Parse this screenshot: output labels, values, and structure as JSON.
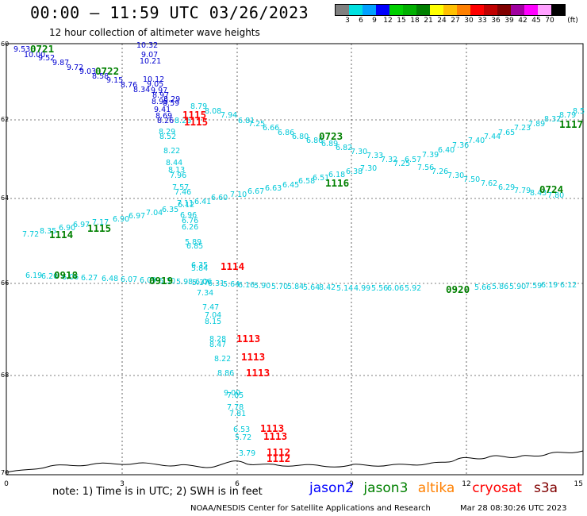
{
  "title": "00:00 — 11:59 UTC 03/26/2023",
  "subtitle": "12 hour collection of altimeter wave heights",
  "legend": {
    "colors": [
      "#808080",
      "#00e0e0",
      "#00a0ff",
      "#0000ff",
      "#00d000",
      "#00b000",
      "#008000",
      "#ffff00",
      "#ffc000",
      "#ff8000",
      "#ff0000",
      "#c00000",
      "#800000",
      "#a000a0",
      "#ff00ff",
      "#ffa0ff",
      "#000000"
    ],
    "ticks": [
      "3",
      "6",
      "9",
      "12",
      "15",
      "18",
      "21",
      "24",
      "27",
      "30",
      "33",
      "36",
      "39",
      "42",
      "45",
      "70"
    ],
    "unit": "(ft)"
  },
  "axes": {
    "y_labels": [
      "60",
      "62",
      "64",
      "66",
      "68",
      "70"
    ],
    "x_labels": [
      "0",
      "3",
      "6",
      "9",
      "12",
      "15"
    ]
  },
  "note": "note:  1) Time is in UTC; 2) SWH is in feet",
  "satellites": [
    {
      "name": "jason2",
      "color": "#0000ff"
    },
    {
      "name": "jason3",
      "color": "#008000"
    },
    {
      "name": "altika",
      "color": "#ff8000"
    },
    {
      "name": "cryosat",
      "color": "#ff0000"
    },
    {
      "name": "s3a",
      "color": "#800000"
    }
  ],
  "credit": "NOAA/NESDIS Center for Satellite Applications and Research",
  "credit_time": "Mar 28 08:30:26 UTC 2023",
  "time_labels": [
    {
      "text": "0721",
      "color": "#008000"
    },
    {
      "text": "0722",
      "color": "#008000"
    },
    {
      "text": "0723",
      "color": "#008000"
    },
    {
      "text": "0724",
      "color": "#008000"
    },
    {
      "text": "1117",
      "color": "#008000"
    },
    {
      "text": "1116",
      "color": "#008000"
    },
    {
      "text": "1114",
      "color": "#008000"
    },
    {
      "text": "1115",
      "color": "#008000"
    },
    {
      "text": "0918",
      "color": "#008000"
    },
    {
      "text": "0919",
      "color": "#008000"
    },
    {
      "text": "0920",
      "color": "#008000"
    },
    {
      "text": "1115",
      "color": "#ff0000"
    },
    {
      "text": "1115",
      "color": "#ff0000"
    },
    {
      "text": "1114",
      "color": "#ff0000"
    },
    {
      "text": "1113",
      "color": "#ff0000"
    },
    {
      "text": "1113",
      "color": "#ff0000"
    },
    {
      "text": "1113",
      "color": "#ff0000"
    },
    {
      "text": "1113",
      "color": "#ff0000"
    },
    {
      "text": "1113",
      "color": "#ff0000"
    },
    {
      "text": "1112",
      "color": "#ff0000"
    },
    {
      "text": "1112",
      "color": "#ff0000"
    }
  ],
  "tracks": {
    "jason2_nw": [
      "9.53",
      "10.00",
      "9.52",
      "9.87",
      "9.72",
      "9.03",
      "8.58",
      "9.15",
      "8.76",
      "8.34",
      "10.32",
      "9.07",
      "10.21",
      "9.97",
      "10.12",
      "9.05",
      "8.97",
      "8.29",
      "8.95",
      "8.59",
      "9.41",
      "8.69",
      "8.26"
    ],
    "cyan_descent": [
      "8.26",
      "8.79",
      "8.08",
      "7.94",
      "8.29",
      "8.52",
      "8.22",
      "8.44",
      "8.13",
      "7.96",
      "7.57",
      "7.46",
      "7.11",
      "6.96",
      "6.76",
      "6.26",
      "5.89",
      "6.85",
      "6.35",
      "5.84",
      "6.06",
      "7.34",
      "7.47",
      "7.04",
      "8.15",
      "8.28",
      "8.47",
      "8.22",
      "8.86",
      "9.00",
      "7.05",
      "7.78",
      "7.81",
      "6.53",
      "5.72",
      "3.79"
    ],
    "ascending_east": [
      "6.81",
      "7.25",
      "6.66",
      "6.86",
      "6.80",
      "6.86",
      "6.89",
      "6.82",
      "7.30",
      "7.33",
      "7.32",
      "7.25",
      "6.57",
      "7.39",
      "6.40",
      "7.36",
      "7.40",
      "7.44",
      "7.65",
      "7.23",
      "7.89",
      "8.32",
      "8.79",
      "8.5"
    ],
    "descending_east": [
      "7.72",
      "8.35",
      "6.90",
      "6.97",
      "7.17",
      "6.90",
      "6.97",
      "7.04",
      "6.35",
      "6.12",
      "6.41",
      "6.60",
      "7.10",
      "6.67",
      "6.63",
      "6.45",
      "6.58",
      "6.51",
      "6.18",
      "6.38",
      "7.30",
      "7.56",
      "7.26",
      "7.30",
      "7.50",
      "7.62",
      "6.29",
      "7.79",
      "8.43",
      "7.80"
    ],
    "row_66": [
      "6.19",
      "6.20",
      "6.06",
      "6.27",
      "6.48",
      "6.07",
      "6.09",
      "6.30",
      "5.98",
      "5.37",
      "6.31",
      "5.64",
      "6.16",
      "5.90",
      "5.70",
      "5.84",
      "5.64",
      "8.42",
      "5.14",
      "4.99",
      "5.56",
      "6.06",
      "5.92",
      "5.66",
      "5.86",
      "5.90",
      "7.59",
      "6.19",
      "6.12"
    ]
  }
}
